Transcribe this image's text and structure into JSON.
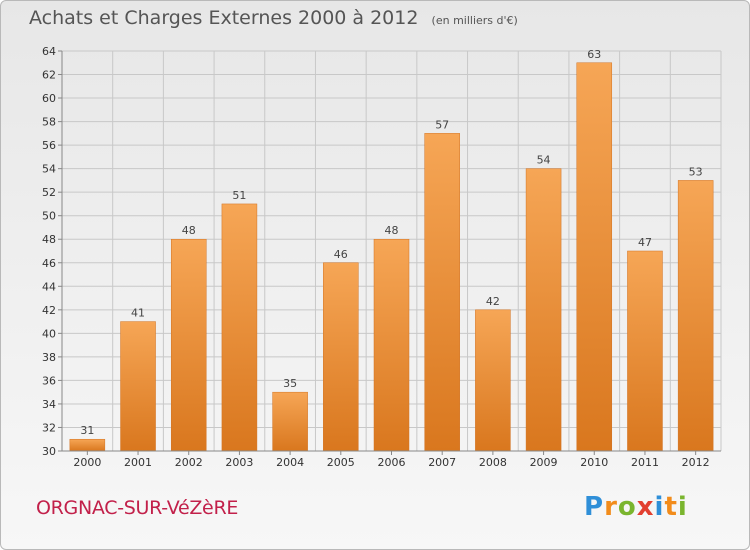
{
  "title": "Achats et Charges Externes 2000 à 2012",
  "unit": "(en milliers d'€)",
  "commune": "ORGNAC-SUR-VéZèRE",
  "logo": "Proxiti",
  "colors": {
    "bar_light": "#f6a656",
    "bar_dark": "#d9771e",
    "grid": "#c8c8c8",
    "commune": "#c2204a"
  },
  "chart_data": {
    "type": "bar",
    "categories": [
      "2000",
      "2001",
      "2002",
      "2003",
      "2004",
      "2005",
      "2006",
      "2007",
      "2008",
      "2009",
      "2010",
      "2011",
      "2012"
    ],
    "values": [
      31,
      41,
      48,
      51,
      35,
      46,
      48,
      57,
      42,
      54,
      63,
      47,
      53
    ],
    "ylim": [
      30,
      64
    ],
    "yticks": [
      30,
      32,
      34,
      36,
      38,
      40,
      42,
      44,
      46,
      48,
      50,
      52,
      54,
      56,
      58,
      60,
      62,
      64
    ],
    "grid": true,
    "title": "Achats et Charges Externes 2000 à 2012",
    "xlabel": "",
    "ylabel": ""
  }
}
